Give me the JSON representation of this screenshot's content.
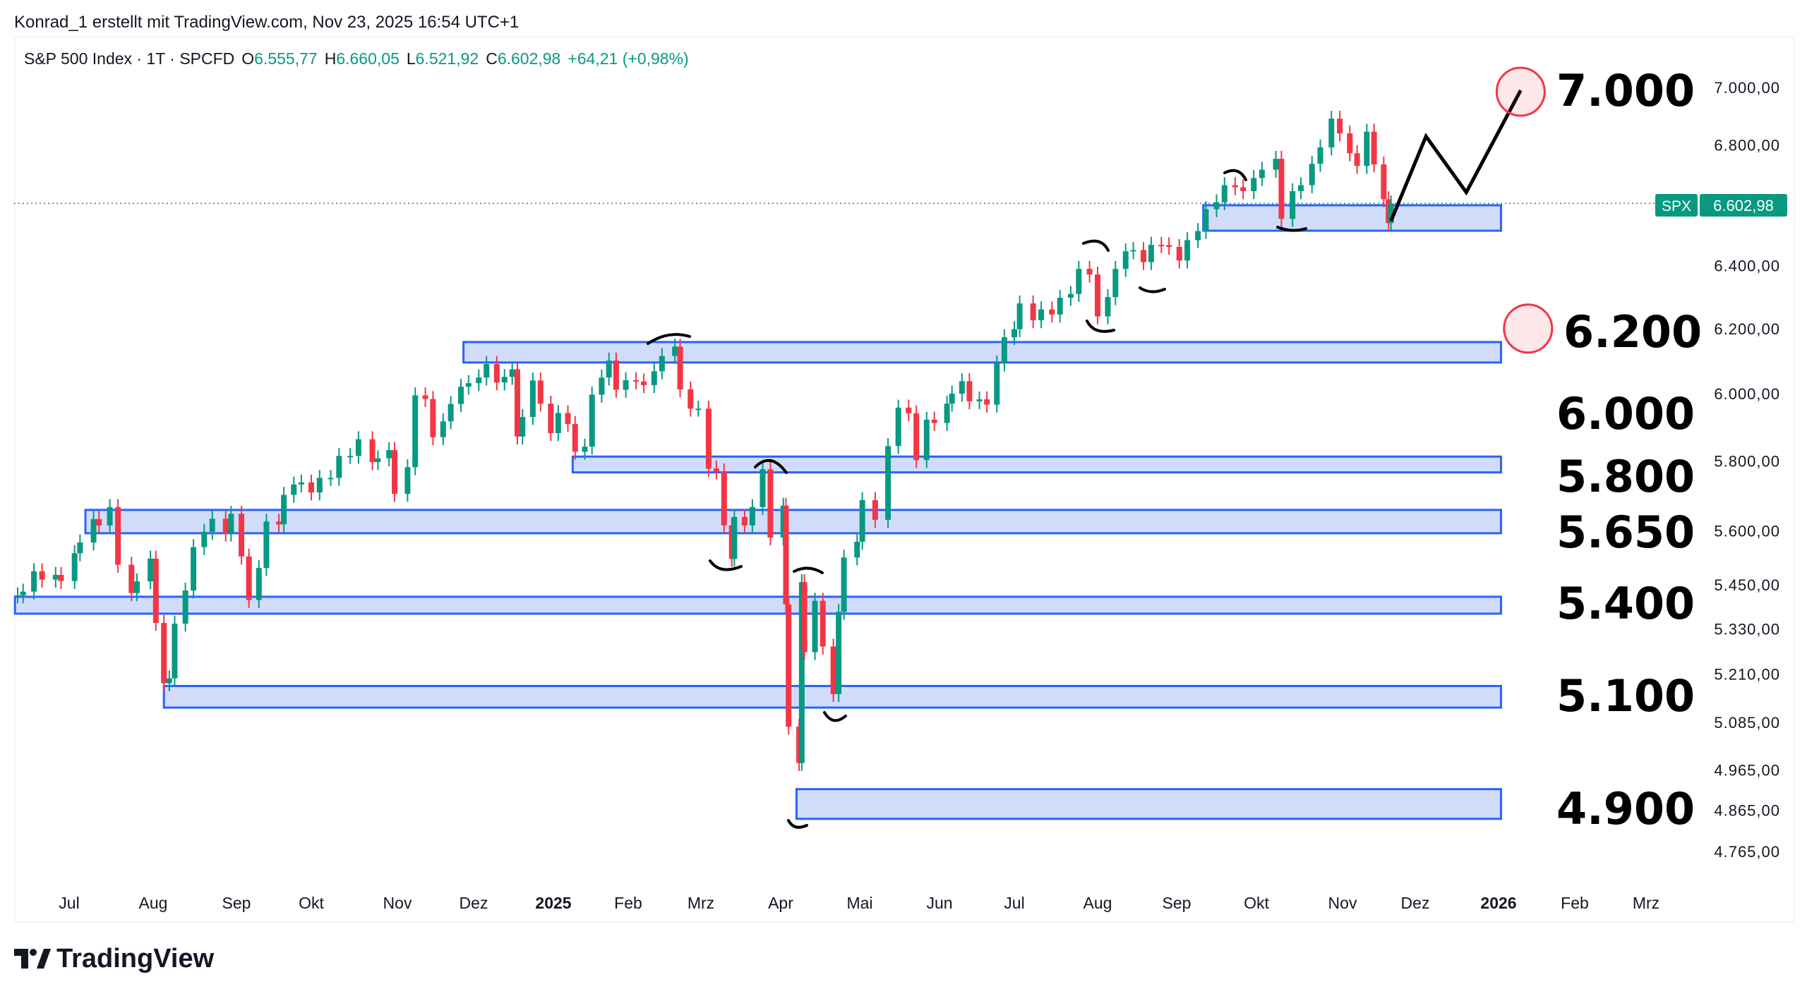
{
  "credit": "Konrad_1 erstellt mit TradingView.com, Nov 23, 2025 16:54 UTC+1",
  "legend": {
    "symbol": "S&P 500 Index · 1T · SPCFD",
    "o_label": "O",
    "o": "6.555,77",
    "h_label": "H",
    "h": "6.660,05",
    "l_label": "L",
    "l": "6.521,92",
    "c_label": "C",
    "c": "6.602,98",
    "change": "+64,21 (+0,98%)"
  },
  "logo": "TradingView",
  "colors": {
    "up": "#089981",
    "down": "#f23645",
    "zone_fill": "#d1dcfb",
    "zone_border": "#2962ff",
    "circle": "#f23645"
  },
  "chart_data": {
    "type": "candlestick",
    "y_scale": "log",
    "grid": false,
    "ylim": [
      4700,
      7050
    ],
    "y_ticks": [
      "7.000,00",
      "6.800,00",
      "6.400,00",
      "6.200,00",
      "6.000,00",
      "5.800,00",
      "5.600,00",
      "5.450,00",
      "5.330,00",
      "5.210,00",
      "5.085,00",
      "4.965,00",
      "4.865,00",
      "4.765,00"
    ],
    "y_tick_values": [
      7000,
      6800,
      6400,
      6200,
      6000,
      5800,
      5600,
      5450,
      5330,
      5210,
      5085,
      4965,
      4865,
      4765
    ],
    "x_ticks": [
      {
        "label": "Jul",
        "date": "2024-07-01"
      },
      {
        "label": "Aug",
        "date": "2024-08-01"
      },
      {
        "label": "Sep",
        "date": "2024-09-01"
      },
      {
        "label": "Okt",
        "date": "2024-10-01"
      },
      {
        "label": "Nov",
        "date": "2024-11-01"
      },
      {
        "label": "Dez",
        "date": "2024-12-01"
      },
      {
        "label": "2025",
        "date": "2025-01-01",
        "bold": true
      },
      {
        "label": "Feb",
        "date": "2025-02-01"
      },
      {
        "label": "Mrz",
        "date": "2025-03-01"
      },
      {
        "label": "Apr",
        "date": "2025-04-01"
      },
      {
        "label": "Mai",
        "date": "2025-05-01"
      },
      {
        "label": "Jun",
        "date": "2025-06-01"
      },
      {
        "label": "Jul",
        "date": "2025-07-01"
      },
      {
        "label": "Aug",
        "date": "2025-08-01"
      },
      {
        "label": "Sep",
        "date": "2025-09-01"
      },
      {
        "label": "Okt",
        "date": "2025-10-01"
      },
      {
        "label": "Nov",
        "date": "2025-11-01"
      },
      {
        "label": "Dez",
        "date": "2025-12-01"
      },
      {
        "label": "2026",
        "date": "2026-01-01",
        "bold": true
      },
      {
        "label": "Feb",
        "date": "2026-02-01"
      },
      {
        "label": "Mrz",
        "date": "2026-03-01"
      }
    ],
    "last_price": {
      "symbol": "SPX",
      "value": 6602.98,
      "label": "6.602,98"
    },
    "closes": [
      [
        "2024-06-12",
        5421
      ],
      [
        "2024-06-14",
        5431
      ],
      [
        "2024-06-18",
        5487
      ],
      [
        "2024-06-21",
        5464
      ],
      [
        "2024-06-26",
        5477
      ],
      [
        "2024-06-28",
        5460
      ],
      [
        "2024-07-03",
        5537
      ],
      [
        "2024-07-05",
        5567
      ],
      [
        "2024-07-10",
        5633
      ],
      [
        "2024-07-12",
        5615
      ],
      [
        "2024-07-16",
        5667
      ],
      [
        "2024-07-19",
        5505
      ],
      [
        "2024-07-24",
        5427
      ],
      [
        "2024-07-26",
        5459
      ],
      [
        "2024-07-31",
        5522
      ],
      [
        "2024-08-02",
        5346
      ],
      [
        "2024-08-05",
        5186
      ],
      [
        "2024-08-07",
        5199
      ],
      [
        "2024-08-09",
        5344
      ],
      [
        "2024-08-13",
        5434
      ],
      [
        "2024-08-16",
        5554
      ],
      [
        "2024-08-20",
        5597
      ],
      [
        "2024-08-23",
        5634
      ],
      [
        "2024-08-28",
        5592
      ],
      [
        "2024-08-30",
        5648
      ],
      [
        "2024-09-03",
        5528
      ],
      [
        "2024-09-06",
        5408
      ],
      [
        "2024-09-10",
        5496
      ],
      [
        "2024-09-13",
        5626
      ],
      [
        "2024-09-18",
        5618
      ],
      [
        "2024-09-20",
        5702
      ],
      [
        "2024-09-24",
        5732
      ],
      [
        "2024-09-27",
        5738
      ],
      [
        "2024-10-01",
        5709
      ],
      [
        "2024-10-04",
        5751
      ],
      [
        "2024-10-08",
        5751
      ],
      [
        "2024-10-11",
        5815
      ],
      [
        "2024-10-15",
        5815
      ],
      [
        "2024-10-18",
        5864
      ],
      [
        "2024-10-23",
        5797
      ],
      [
        "2024-10-25",
        5808
      ],
      [
        "2024-10-29",
        5832
      ],
      [
        "2024-10-31",
        5705
      ],
      [
        "2024-11-05",
        5782
      ],
      [
        "2024-11-08",
        5995
      ],
      [
        "2024-11-12",
        5984
      ],
      [
        "2024-11-15",
        5870
      ],
      [
        "2024-11-19",
        5917
      ],
      [
        "2024-11-22",
        5969
      ],
      [
        "2024-11-26",
        6021
      ],
      [
        "2024-11-29",
        6032
      ],
      [
        "2024-12-03",
        6049
      ],
      [
        "2024-12-06",
        6090
      ],
      [
        "2024-12-10",
        6034
      ],
      [
        "2024-12-13",
        6051
      ],
      [
        "2024-12-16",
        6074
      ],
      [
        "2024-12-18",
        5872
      ],
      [
        "2024-12-20",
        5930
      ],
      [
        "2024-12-24",
        6040
      ],
      [
        "2024-12-27",
        5970
      ],
      [
        "2024-12-31",
        5882
      ],
      [
        "2025-01-03",
        5942
      ],
      [
        "2025-01-07",
        5909
      ],
      [
        "2025-01-10",
        5827
      ],
      [
        "2025-01-14",
        5842
      ],
      [
        "2025-01-17",
        5997
      ],
      [
        "2025-01-21",
        6049
      ],
      [
        "2025-01-24",
        6101
      ],
      [
        "2025-01-27",
        6012
      ],
      [
        "2025-01-31",
        6041
      ],
      [
        "2025-02-04",
        6037
      ],
      [
        "2025-02-07",
        6026
      ],
      [
        "2025-02-11",
        6068
      ],
      [
        "2025-02-14",
        6115
      ],
      [
        "2025-02-19",
        6144
      ],
      [
        "2025-02-21",
        6013
      ],
      [
        "2025-02-25",
        5955
      ],
      [
        "2025-02-28",
        5955
      ],
      [
        "2025-03-04",
        5778
      ],
      [
        "2025-03-07",
        5770
      ],
      [
        "2025-03-10",
        5615
      ],
      [
        "2025-03-13",
        5521
      ],
      [
        "2025-03-14",
        5639
      ],
      [
        "2025-03-18",
        5615
      ],
      [
        "2025-03-21",
        5667
      ],
      [
        "2025-03-25",
        5776
      ],
      [
        "2025-03-28",
        5581
      ],
      [
        "2025-04-02",
        5671
      ],
      [
        "2025-04-03",
        5396
      ],
      [
        "2025-04-04",
        5074
      ],
      [
        "2025-04-08",
        4982
      ],
      [
        "2025-04-09",
        5457
      ],
      [
        "2025-04-10",
        5268
      ],
      [
        "2025-04-14",
        5406
      ],
      [
        "2025-04-17",
        5283
      ],
      [
        "2025-04-21",
        5158
      ],
      [
        "2025-04-23",
        5376
      ],
      [
        "2025-04-25",
        5525
      ],
      [
        "2025-04-30",
        5569
      ],
      [
        "2025-05-02",
        5687
      ],
      [
        "2025-05-07",
        5631
      ],
      [
        "2025-05-12",
        5844
      ],
      [
        "2025-05-16",
        5958
      ],
      [
        "2025-05-20",
        5941
      ],
      [
        "2025-05-23",
        5803
      ],
      [
        "2025-05-27",
        5922
      ],
      [
        "2025-05-30",
        5912
      ],
      [
        "2025-06-04",
        5970
      ],
      [
        "2025-06-06",
        6000
      ],
      [
        "2025-06-10",
        6038
      ],
      [
        "2025-06-13",
        5977
      ],
      [
        "2025-06-17",
        5983
      ],
      [
        "2025-06-20",
        5967
      ],
      [
        "2025-06-24",
        6092
      ],
      [
        "2025-06-27",
        6173
      ],
      [
        "2025-07-01",
        6198
      ],
      [
        "2025-07-03",
        6279
      ],
      [
        "2025-07-08",
        6226
      ],
      [
        "2025-07-11",
        6260
      ],
      [
        "2025-07-15",
        6244
      ],
      [
        "2025-07-18",
        6297
      ],
      [
        "2025-07-22",
        6309
      ],
      [
        "2025-07-25",
        6389
      ],
      [
        "2025-07-29",
        6371
      ],
      [
        "2025-08-01",
        6238
      ],
      [
        "2025-08-05",
        6299
      ],
      [
        "2025-08-08",
        6389
      ],
      [
        "2025-08-12",
        6446
      ],
      [
        "2025-08-15",
        6450
      ],
      [
        "2025-08-19",
        6411
      ],
      [
        "2025-08-22",
        6467
      ],
      [
        "2025-08-26",
        6466
      ],
      [
        "2025-08-29",
        6460
      ],
      [
        "2025-09-02",
        6416
      ],
      [
        "2025-09-05",
        6482
      ],
      [
        "2025-09-09",
        6512
      ],
      [
        "2025-09-12",
        6584
      ],
      [
        "2025-09-16",
        6607
      ],
      [
        "2025-09-19",
        6664
      ],
      [
        "2025-09-23",
        6657
      ],
      [
        "2025-09-26",
        6644
      ],
      [
        "2025-09-30",
        6688
      ],
      [
        "2025-10-03",
        6716
      ],
      [
        "2025-10-08",
        6753
      ],
      [
        "2025-10-10",
        6552
      ],
      [
        "2025-10-14",
        6644
      ],
      [
        "2025-10-17",
        6664
      ],
      [
        "2025-10-21",
        6736
      ],
      [
        "2025-10-24",
        6792
      ],
      [
        "2025-10-28",
        6891
      ],
      [
        "2025-10-31",
        6840
      ],
      [
        "2025-11-04",
        6772
      ],
      [
        "2025-11-07",
        6729
      ],
      [
        "2025-11-11",
        6846
      ],
      [
        "2025-11-14",
        6734
      ],
      [
        "2025-11-18",
        6617
      ],
      [
        "2025-11-20",
        6538
      ],
      [
        "2025-11-21",
        6603
      ]
    ],
    "zones": [
      {
        "from": "2024-11-27",
        "to": "2026-01-02",
        "low": 6095,
        "high": 6158
      },
      {
        "from": "2025-09-11",
        "to": "2026-01-02",
        "low": 6513,
        "high": 6597
      },
      {
        "from": "2025-01-09",
        "to": "2026-01-02",
        "low": 5767,
        "high": 5813
      },
      {
        "from": "2024-07-07",
        "to": "2026-01-02",
        "low": 5593,
        "high": 5659
      },
      {
        "from": "2024-06-11",
        "to": "2026-01-02",
        "low": 5371,
        "high": 5417
      },
      {
        "from": "2024-08-05",
        "to": "2026-01-02",
        "low": 5123,
        "high": 5179
      },
      {
        "from": "2025-04-07",
        "to": "2026-01-02",
        "low": 4844,
        "high": 4917
      }
    ],
    "projection": [
      [
        "2025-11-21",
        6545
      ],
      [
        "2025-12-05",
        6830
      ],
      [
        "2025-12-20",
        6640
      ],
      [
        "2026-01-10",
        6990
      ]
    ],
    "targets": [
      {
        "date": "2026-01-10",
        "price": 6985
      },
      {
        "date": "2026-01-13",
        "price": 6200
      }
    ],
    "level_labels": [
      "7.000",
      "6.200",
      "6.000",
      "5.800",
      "5.650",
      "5.400",
      "5.100",
      "4.900"
    ]
  }
}
